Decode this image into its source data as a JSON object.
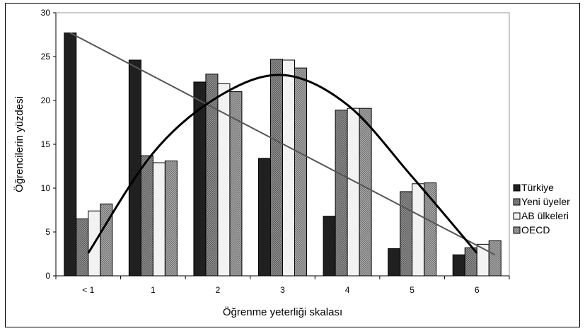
{
  "chart_data": {
    "type": "bar",
    "title": "",
    "xlabel": "Öğrenme yeterliği skalası",
    "ylabel": "Öğrencilerin yüzdesi",
    "categories": [
      "< 1",
      "1",
      "2",
      "3",
      "4",
      "5",
      "6"
    ],
    "ylim": [
      0,
      30
    ],
    "yticks": [
      0,
      5,
      10,
      15,
      20,
      25,
      30
    ],
    "grid": false,
    "legend_position": "right",
    "series": [
      {
        "name": "Türkiye",
        "values": [
          27.7,
          24.6,
          22.1,
          13.4,
          6.8,
          3.1,
          2.4
        ],
        "color": "#202020",
        "pattern": "solid"
      },
      {
        "name": "Yeni üyeler",
        "values": [
          6.5,
          13.7,
          23.0,
          24.7,
          18.9,
          9.6,
          3.2
        ],
        "color": "#6e6e6e",
        "pattern": "checker"
      },
      {
        "name": "AB ülkeleri",
        "values": [
          7.4,
          12.9,
          21.9,
          24.6,
          19.1,
          10.5,
          3.6
        ],
        "color": "#f2f2f2",
        "pattern": "solid"
      },
      {
        "name": "OECD",
        "values": [
          8.2,
          13.1,
          21.0,
          23.7,
          19.1,
          10.6,
          4.0
        ],
        "color": "#8a8a8a",
        "pattern": "checker"
      }
    ],
    "trendlines": [
      {
        "kind": "linear",
        "from": {
          "x": "< 1",
          "y": 27.7
        },
        "to": {
          "x": "6",
          "y": 2.4
        },
        "color": "#555555"
      },
      {
        "kind": "polynomial",
        "points": [
          {
            "x": "< 1",
            "y": 2.6
          },
          {
            "x": "1",
            "y": 14.0
          },
          {
            "x": "2",
            "y": 20.4
          },
          {
            "x": "3",
            "y": 22.9
          },
          {
            "x": "4",
            "y": 19.5
          },
          {
            "x": "5",
            "y": 11.3
          },
          {
            "x": "6",
            "y": 2.6
          }
        ],
        "color": "#000000"
      }
    ]
  }
}
